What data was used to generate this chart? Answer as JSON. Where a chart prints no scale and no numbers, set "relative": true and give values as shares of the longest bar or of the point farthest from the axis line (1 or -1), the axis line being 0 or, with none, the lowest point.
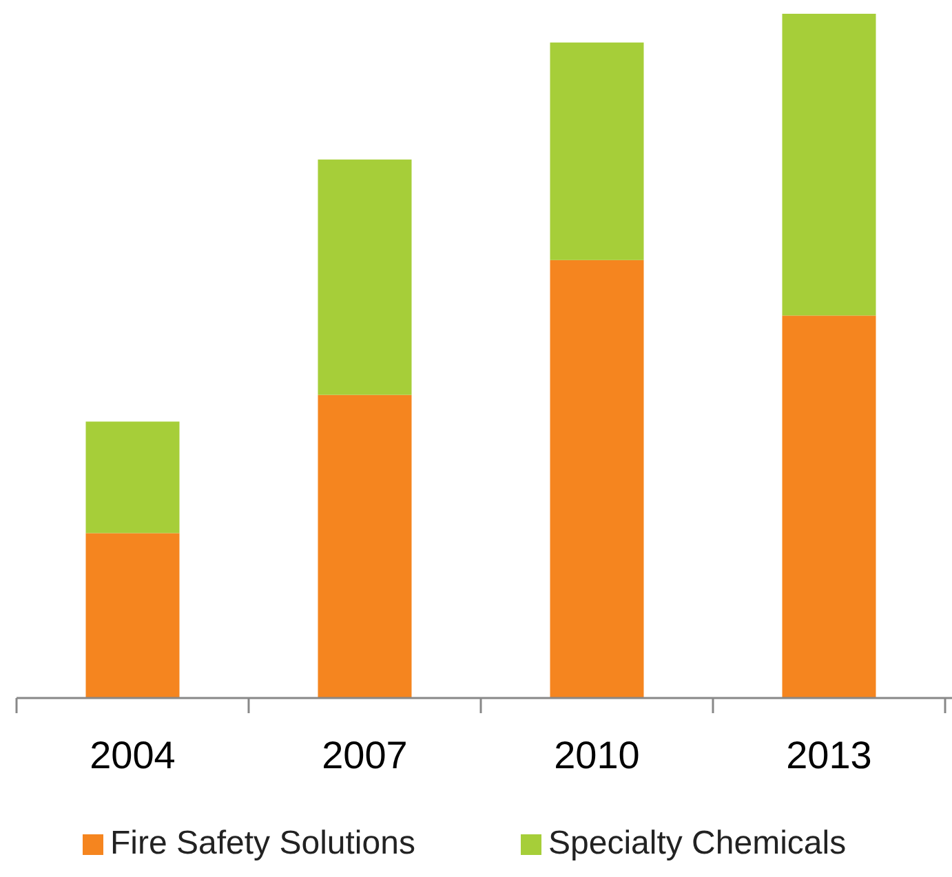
{
  "chart_data": {
    "type": "bar",
    "stacked": true,
    "relative": true,
    "categories": [
      "2004",
      "2007",
      "2010",
      "2013"
    ],
    "series": [
      {
        "name": "Fire Safety Solutions",
        "color": "#f5851f",
        "values": [
          0.241,
          0.443,
          0.64,
          0.559
        ]
      },
      {
        "name": "Specialty Chemicals",
        "color": "#a6ce39",
        "values": [
          0.163,
          0.344,
          0.318,
          0.441
        ]
      }
    ],
    "legend": "bottom"
  }
}
